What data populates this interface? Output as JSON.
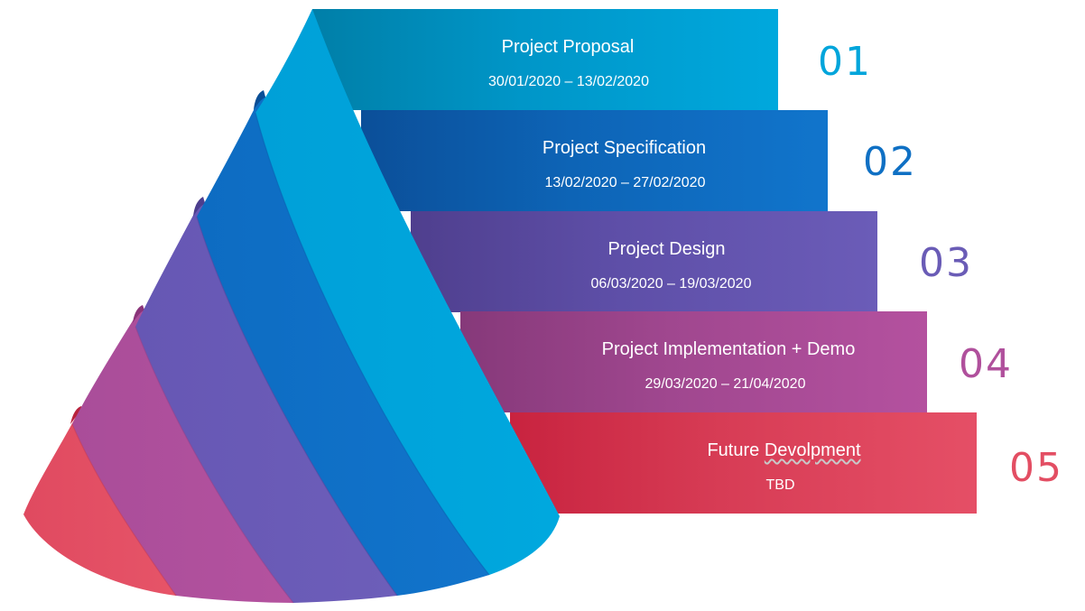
{
  "steps": [
    {
      "number": "01",
      "title": "Project Proposal",
      "dates": "30/01/2020 – 13/02/2020",
      "color": "#00a5db"
    },
    {
      "number": "02",
      "title": "Project Specification",
      "dates": "13/02/2020 – 27/02/2020",
      "color": "#0f70c4"
    },
    {
      "number": "03",
      "title": "Project Design",
      "dates": "06/03/2020 – 19/03/2020",
      "color": "#6a5cb6"
    },
    {
      "number": "04",
      "title": "Project Implementation + Demo",
      "dates": "29/03/2020 – 21/04/2020",
      "color": "#b0509c"
    },
    {
      "number": "05",
      "title_parts": [
        "Future ",
        "Devolpment"
      ],
      "dates": "TBD",
      "color": "#e34e63"
    }
  ]
}
